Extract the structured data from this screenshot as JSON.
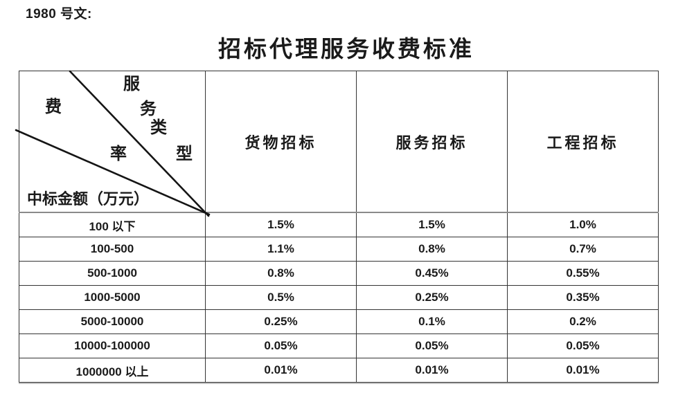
{
  "doc_number": "1980 号文:",
  "title": "招标代理服务收费标准",
  "table": {
    "corner": {
      "axis_top_chars": [
        "服",
        "务",
        "类",
        "型"
      ],
      "axis_mid_chars": [
        "费",
        "率"
      ],
      "axis_bottom": "中标金额（万元）"
    },
    "columns": [
      "货物招标",
      "服务招标",
      "工程招标"
    ],
    "rows": [
      {
        "amount": "100 以下",
        "values": [
          "1.5%",
          "1.5%",
          "1.0%"
        ]
      },
      {
        "amount": "100-500",
        "values": [
          "1.1%",
          "0.8%",
          "0.7%"
        ]
      },
      {
        "amount": "500-1000",
        "values": [
          "0.8%",
          "0.45%",
          "0.55%"
        ]
      },
      {
        "amount": "1000-5000",
        "values": [
          "0.5%",
          "0.25%",
          "0.35%"
        ]
      },
      {
        "amount": "5000-10000",
        "values": [
          "0.25%",
          "0.1%",
          "0.2%"
        ]
      },
      {
        "amount": "10000-100000",
        "values": [
          "0.05%",
          "0.05%",
          "0.05%"
        ]
      },
      {
        "amount": "1000000 以上",
        "values": [
          "0.01%",
          "0.01%",
          "0.01%"
        ]
      }
    ]
  },
  "colors": {
    "text": "#1a1a1a",
    "border": "#333333",
    "header_separator": "#8a8a8a",
    "background": "#ffffff"
  }
}
